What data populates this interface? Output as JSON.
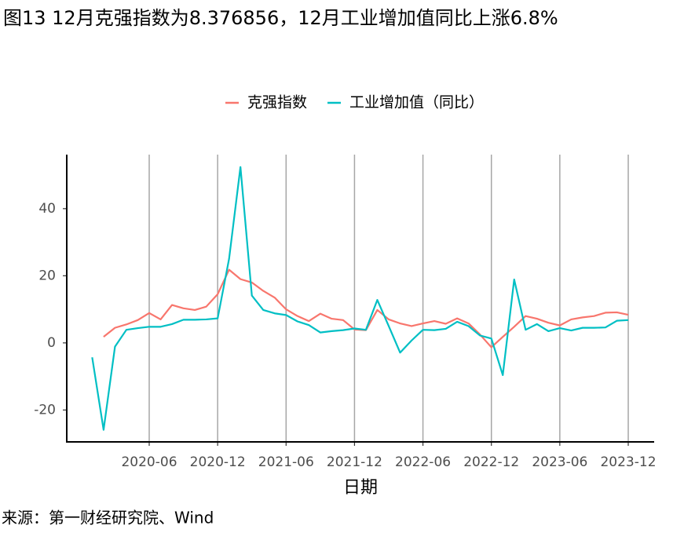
{
  "chart_data": {
    "type": "line",
    "title": "图13 12月克强指数为8.376856，12月工业增加值同比上涨6.8%",
    "x_label": "日期",
    "source": "来源：第一财经研究院、Wind",
    "legend_position": "top",
    "grid": true,
    "x": [
      "2020-01",
      "2020-02",
      "2020-03",
      "2020-04",
      "2020-05",
      "2020-06",
      "2020-07",
      "2020-08",
      "2020-09",
      "2020-10",
      "2020-11",
      "2020-12",
      "2021-01",
      "2021-02",
      "2021-03",
      "2021-04",
      "2021-05",
      "2021-06",
      "2021-07",
      "2021-08",
      "2021-09",
      "2021-10",
      "2021-11",
      "2021-12",
      "2022-01",
      "2022-02",
      "2022-03",
      "2022-04",
      "2022-05",
      "2022-06",
      "2022-07",
      "2022-08",
      "2022-09",
      "2022-10",
      "2022-11",
      "2022-12",
      "2023-01",
      "2023-02",
      "2023-03",
      "2023-04",
      "2023-05",
      "2023-06",
      "2023-07",
      "2023-08",
      "2023-09",
      "2023-10",
      "2023-11",
      "2023-12"
    ],
    "xticks": [
      "2020-06",
      "2020-12",
      "2021-06",
      "2021-12",
      "2022-06",
      "2022-12",
      "2023-06",
      "2023-12"
    ],
    "ylim": [
      -29.5,
      56.1
    ],
    "yticks": [
      -20,
      0,
      20,
      40
    ],
    "series": [
      {
        "name": "克强指数",
        "color": "#f8766d",
        "values": [
          null,
          1.8,
          4.5,
          5.5,
          6.8,
          8.9,
          7.0,
          11.3,
          10.3,
          9.8,
          10.8,
          14.5,
          21.8,
          19.0,
          18.0,
          15.5,
          13.5,
          10.0,
          8.0,
          6.5,
          8.7,
          7.2,
          6.8,
          4.0,
          3.8,
          9.8,
          7.0,
          5.8,
          5.0,
          5.8,
          6.5,
          5.7,
          7.3,
          5.8,
          2.5,
          -1.3,
          1.8,
          4.8,
          8.0,
          7.2,
          6.0,
          5.2,
          7.0,
          7.6,
          8.0,
          9.0,
          9.1,
          8.376856
        ]
      },
      {
        "name": "工业增加值（同比）",
        "color": "#00bfc4",
        "values": [
          -4.3,
          -25.9,
          -1.1,
          3.9,
          4.4,
          4.8,
          4.8,
          5.6,
          6.9,
          6.9,
          7.0,
          7.3,
          25.0,
          52.4,
          14.1,
          9.8,
          8.8,
          8.3,
          6.4,
          5.3,
          3.1,
          3.5,
          3.8,
          4.3,
          3.9,
          12.8,
          5.0,
          -2.9,
          0.7,
          3.9,
          3.8,
          4.2,
          6.3,
          5.0,
          2.2,
          1.3,
          -9.6,
          18.9,
          3.9,
          5.6,
          3.5,
          4.4,
          3.7,
          4.5,
          4.5,
          4.6,
          6.6,
          6.8
        ]
      }
    ]
  }
}
